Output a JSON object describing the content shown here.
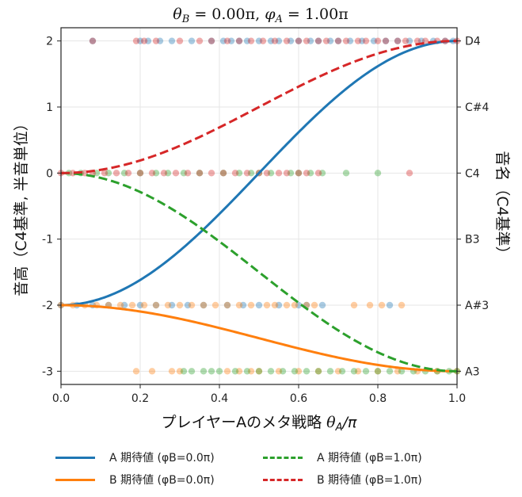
{
  "chart_data": {
    "type": "line",
    "title": "θB = 0.00π,  φA = 1.00π",
    "title_parts": {
      "theta": "θ",
      "theta_sub": "B",
      "theta_val": " = 0.00π,  ",
      "phi": "φ",
      "phi_sub": "A",
      "phi_val": " = 1.00π"
    },
    "xlabel": "プレイヤーAのメタ戦略 θA/π",
    "xlabel_parts": {
      "text": "プレイヤーAのメタ戦略  ",
      "theta": "θ",
      "sub": "A",
      "tail": "/π"
    },
    "ylabel": "音高（C4基準, 半音単位）",
    "ylabel_right": "音名（C4基準）",
    "xlim": [
      0.0,
      1.0
    ],
    "ylim": [
      -3.2,
      2.2
    ],
    "x_ticks": [
      0.0,
      0.2,
      0.4,
      0.6,
      0.8,
      1.0
    ],
    "x_tick_labels": [
      "0.0",
      "0.2",
      "0.4",
      "0.6",
      "0.8",
      "1.0"
    ],
    "y_ticks": [
      2,
      1,
      0,
      -1,
      -2,
      -3
    ],
    "y_tick_labels": [
      "2",
      "1",
      "0",
      "-1",
      "-2",
      "-3"
    ],
    "y_right_tick_labels": [
      "D4",
      "C#4",
      "C4",
      "B3",
      "A#3",
      "A3"
    ],
    "grid": true,
    "legend_position": "below",
    "series": [
      {
        "name": "A 期待値 (φB=0.0π)",
        "color": "#1f77b4",
        "dash": "solid",
        "start": -2,
        "end": 2,
        "model": "sin2"
      },
      {
        "name": "B 期待値 (φB=0.0π)",
        "color": "#ff7f0e",
        "dash": "solid",
        "start": -2,
        "end": -3,
        "model": "sin2"
      },
      {
        "name": "A 期待値 (φB=1.0π)",
        "color": "#2ca02c",
        "dash": "dashed",
        "start": 0,
        "end": -3,
        "model": "sin2"
      },
      {
        "name": "B 期待値 (φB=1.0π)",
        "color": "#d62728",
        "dash": "dashed",
        "start": 0,
        "end": 2,
        "model": "sin2"
      }
    ],
    "scatter": [
      {
        "series": "A (φB=0.0π) samples",
        "color": "#1f77b4",
        "y": 2,
        "x": [
          0.08,
          0.2,
          0.22,
          0.25,
          0.28,
          0.33,
          0.38,
          0.41,
          0.43,
          0.45,
          0.47,
          0.5,
          0.53,
          0.55,
          0.58,
          0.6,
          0.63,
          0.65,
          0.68,
          0.7,
          0.73,
          0.76,
          0.79,
          0.82,
          0.85,
          0.88,
          0.91,
          0.94,
          0.97,
          0.99
        ]
      },
      {
        "series": "B (φB=1.0π) samples",
        "color": "#d62728",
        "y": 2,
        "x": [
          0.08,
          0.19,
          0.21,
          0.24,
          0.3,
          0.35,
          0.38,
          0.42,
          0.45,
          0.48,
          0.51,
          0.54,
          0.57,
          0.6,
          0.62,
          0.65,
          0.67,
          0.7,
          0.72,
          0.75,
          0.77,
          0.8,
          0.82,
          0.85,
          0.87,
          0.9,
          0.92,
          0.95,
          0.97,
          1.0
        ]
      },
      {
        "series": "A (φB=1.0π) samples",
        "color": "#2ca02c",
        "y": 0,
        "x": [
          0.02,
          0.05,
          0.09,
          0.12,
          0.16,
          0.2,
          0.24,
          0.27,
          0.31,
          0.35,
          0.41,
          0.45,
          0.48,
          0.5,
          0.53,
          0.58,
          0.6,
          0.63,
          0.66,
          0.72,
          0.8
        ]
      },
      {
        "series": "B (φB=1.0π) samples",
        "color": "#d62728",
        "y": 0,
        "x": [
          0.0,
          0.03,
          0.06,
          0.08,
          0.11,
          0.14,
          0.17,
          0.2,
          0.23,
          0.26,
          0.29,
          0.32,
          0.35,
          0.38,
          0.41,
          0.44,
          0.47,
          0.5,
          0.52,
          0.55,
          0.57,
          0.6,
          0.62,
          0.65,
          0.88
        ]
      },
      {
        "series": "A (φB=0.0π) samples",
        "color": "#1f77b4",
        "y": -2,
        "x": [
          0.0,
          0.04,
          0.08,
          0.12,
          0.16,
          0.2,
          0.24,
          0.28,
          0.32,
          0.36,
          0.42,
          0.46,
          0.5,
          0.55,
          0.6,
          0.62,
          0.66,
          0.83
        ]
      },
      {
        "series": "B (φB=0.0π) samples",
        "color": "#ff7f0e",
        "y": -2,
        "x": [
          0.0,
          0.03,
          0.06,
          0.09,
          0.12,
          0.15,
          0.18,
          0.21,
          0.24,
          0.27,
          0.3,
          0.33,
          0.36,
          0.39,
          0.42,
          0.45,
          0.48,
          0.52,
          0.54,
          0.57,
          0.59,
          0.62,
          0.64,
          0.74,
          0.78,
          0.81,
          0.86
        ]
      },
      {
        "series": "B (φB=0.0π) samples",
        "color": "#ff7f0e",
        "y": -3,
        "x": [
          0.19,
          0.23,
          0.28,
          0.3,
          0.42,
          0.45,
          0.48,
          0.5,
          0.55,
          0.6,
          0.65,
          0.7,
          0.75,
          0.8,
          0.85,
          0.9,
          0.95,
          1.0
        ]
      },
      {
        "series": "A (φB=1.0π) samples",
        "color": "#2ca02c",
        "y": -3,
        "x": [
          0.31,
          0.33,
          0.36,
          0.38,
          0.4,
          0.44,
          0.47,
          0.5,
          0.53,
          0.56,
          0.59,
          0.62,
          0.65,
          0.68,
          0.71,
          0.74,
          0.77,
          0.8,
          0.83,
          0.86,
          0.89,
          0.92,
          0.95,
          0.98,
          1.0
        ]
      }
    ]
  },
  "legend": [
    {
      "label": "A 期待値 (φB=0.0π)",
      "color": "#1f77b4",
      "dash": "solid"
    },
    {
      "label": "A 期待値 (φB=1.0π)",
      "color": "#2ca02c",
      "dash": "dashed"
    },
    {
      "label": "B 期待値 (φB=0.0π)",
      "color": "#ff7f0e",
      "dash": "solid"
    },
    {
      "label": "B 期待値 (φB=1.0π)",
      "color": "#d62728",
      "dash": "dashed"
    }
  ]
}
